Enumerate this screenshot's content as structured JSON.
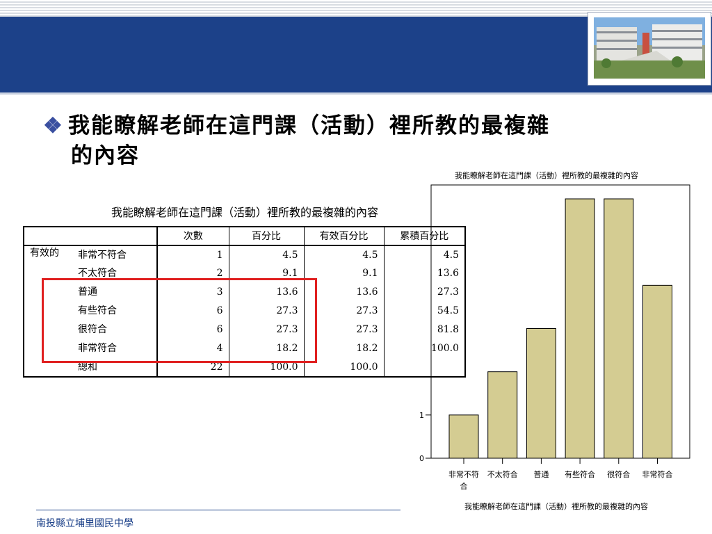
{
  "slide": {
    "heading": "我能瞭解老師在這門課（活動）裡所教的最複雜的內容",
    "heading_line1": "我能瞭解老師在這門課（活動）裡所教的最複雜",
    "heading_line2": "的內容",
    "bullet": "❖",
    "footer": "南投縣立埔里國民中學",
    "banner_color": "#1c4189",
    "highlight_color": "#e02020"
  },
  "table": {
    "title": "我能瞭解老師在這門課（活動）裡所教的最複雜的內容",
    "headers": [
      "次數",
      "百分比",
      "有效百分比",
      "累積百分比"
    ],
    "group_label": "有效的",
    "rows": [
      {
        "label": "非常不符合",
        "count": "1",
        "pct": "4.5",
        "valid_pct": "4.5",
        "cum_pct": "4.5"
      },
      {
        "label": "不太符合",
        "count": "2",
        "pct": "9.1",
        "valid_pct": "9.1",
        "cum_pct": "13.6"
      },
      {
        "label": "普通",
        "count": "3",
        "pct": "13.6",
        "valid_pct": "13.6",
        "cum_pct": "27.3"
      },
      {
        "label": "有些符合",
        "count": "6",
        "pct": "27.3",
        "valid_pct": "27.3",
        "cum_pct": "54.5"
      },
      {
        "label": "很符合",
        "count": "6",
        "pct": "27.3",
        "valid_pct": "27.3",
        "cum_pct": "81.8"
      },
      {
        "label": "非常符合",
        "count": "4",
        "pct": "18.2",
        "valid_pct": "18.2",
        "cum_pct": "100.0"
      }
    ],
    "total": {
      "label": "總和",
      "count": "22",
      "pct": "100.0",
      "valid_pct": "100.0",
      "cum_pct": ""
    }
  },
  "chart_data": {
    "type": "bar",
    "title": "我能瞭解老師在這門課（活動）裡所教的最複雜的內容",
    "xlabel": "我能瞭解老師在這門課（活動）裡所教的最複雜的內容",
    "ylabel": "",
    "categories": [
      "非常不符合",
      "不太符合",
      "普通",
      "有些符合",
      "很符合",
      "非常符合"
    ],
    "values": [
      1,
      2,
      3,
      6,
      6,
      4
    ],
    "ylim": [
      0,
      6.5
    ],
    "visible_yticks": [
      0,
      1
    ],
    "bar_color": "#d4cc92",
    "grid": false,
    "legend": "none"
  }
}
